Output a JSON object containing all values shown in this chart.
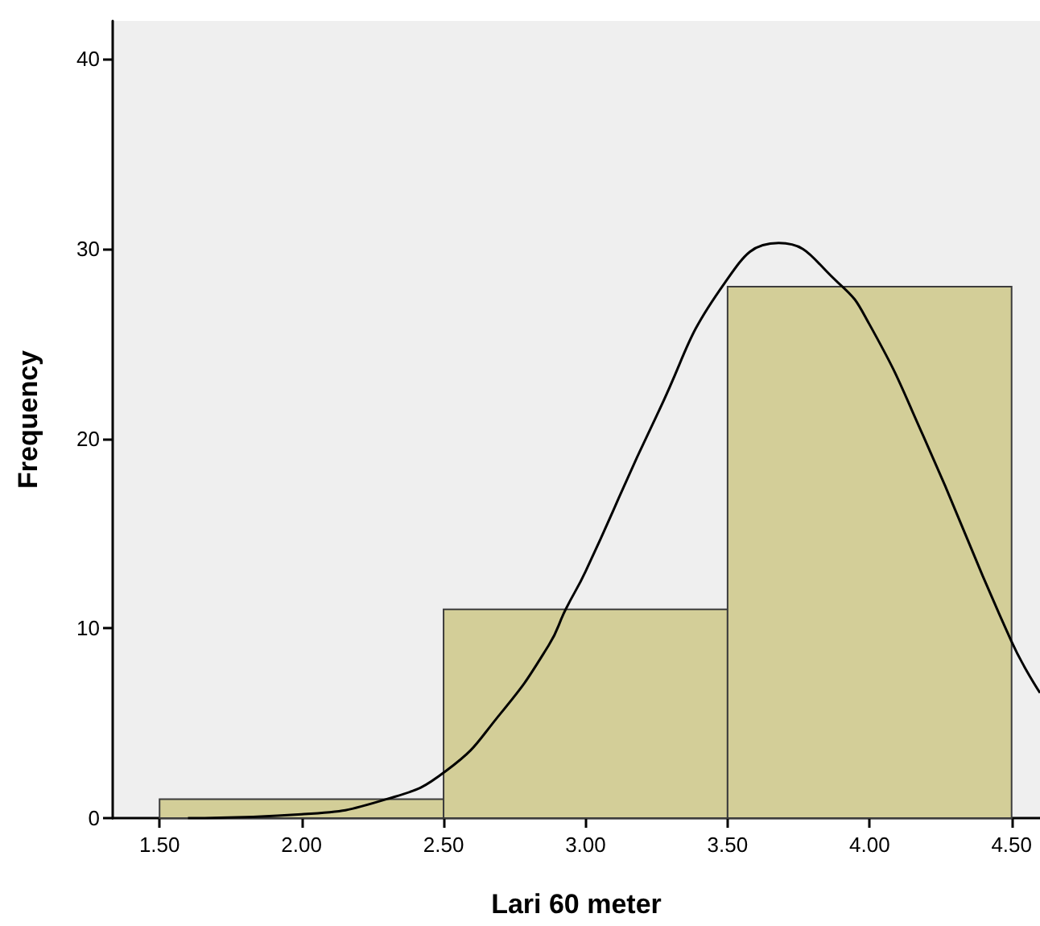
{
  "chart_data": {
    "type": "histogram",
    "xlabel": "Lari 60 meter",
    "ylabel": "Frequency",
    "bins": [
      1.5,
      2.5,
      3.5,
      4.5
    ],
    "values": [
      1,
      11,
      28
    ],
    "color": "#d3ce98",
    "series": [
      {
        "type": "line",
        "color": "#000000",
        "x": [
          1.6,
          2.0,
          2.3,
          2.51,
          2.7,
          2.87,
          2.93,
          3.0,
          3.25,
          3.49,
          3.68,
          3.89,
          4.0,
          4.19,
          4.5,
          4.6
        ],
        "values": [
          0,
          0.2,
          1.0,
          2.5,
          5.5,
          9.1,
          11,
          13,
          21.2,
          28.2,
          30.3,
          28.2,
          26,
          20.1,
          9.3,
          6.6
        ]
      }
    ],
    "xlim": [
      1.335,
      4.6
    ],
    "xticks": [
      {
        "value": 1.5,
        "label": "1.50"
      },
      {
        "value": 2,
        "label": "2.00"
      },
      {
        "value": 2.5,
        "label": "2.50"
      },
      {
        "value": 3,
        "label": "3.00"
      },
      {
        "value": 3.5,
        "label": "3.50"
      },
      {
        "value": 4,
        "label": "4.00"
      },
      {
        "value": 4.5,
        "label": "4.50"
      }
    ],
    "ylim": [
      0,
      42
    ],
    "yticks": [
      0,
      10,
      20,
      30,
      40
    ],
    "marker": "none"
  }
}
